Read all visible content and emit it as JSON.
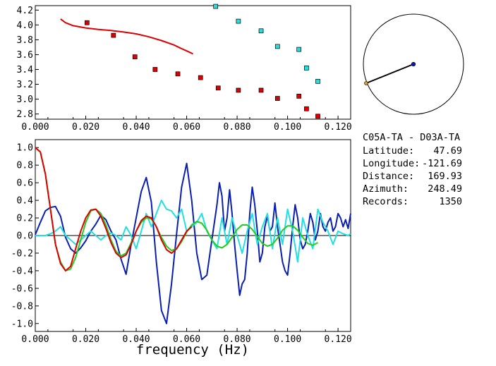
{
  "station_pair": "C05A-TA - D03A-TA",
  "info": [
    {
      "label": "Latitude:",
      "value": "47.69"
    },
    {
      "label": "Longitude:",
      "value": "-121.69"
    },
    {
      "label": "Distance:",
      "value": "169.93"
    },
    {
      "label": "Azimuth:",
      "value": "248.49"
    },
    {
      "label": "Records:",
      "value": "1350"
    }
  ],
  "colors": {
    "red": "#dd0000",
    "cyan": "#22e0e0",
    "blue": "#0a1fb0",
    "green": "#22cc22",
    "black": "#000000"
  },
  "chart_data": [
    {
      "type": "scatter",
      "title": "",
      "xlabel": "",
      "ylabel": "",
      "xlim": [
        0.0,
        0.125
      ],
      "ylim": [
        2.73,
        4.26
      ],
      "xticks": [
        "0.000",
        "0.020",
        "0.040",
        "0.060",
        "0.080",
        "0.100",
        "0.120"
      ],
      "yticks": [
        "2.8",
        "3.0",
        "3.2",
        "3.4",
        "3.6",
        "3.8",
        "4.0",
        "4.2"
      ],
      "series": [
        {
          "kind": "line",
          "color": "red",
          "x": [
            0.01,
            0.012,
            0.015,
            0.02,
            0.025,
            0.03,
            0.035,
            0.04,
            0.045,
            0.05,
            0.055,
            0.058,
            0.06,
            0.0625
          ],
          "y": [
            4.08,
            4.03,
            3.99,
            3.96,
            3.94,
            3.925,
            3.905,
            3.88,
            3.84,
            3.79,
            3.73,
            3.68,
            3.65,
            3.61
          ]
        },
        {
          "kind": "points",
          "color": "red",
          "x": [
            0.0205,
            0.031,
            0.0395,
            0.0475,
            0.0565,
            0.0655,
            0.0725,
            0.0805,
            0.0895,
            0.096,
            0.1045,
            0.1075,
            0.112
          ],
          "y": [
            4.03,
            3.86,
            3.57,
            3.4,
            3.34,
            3.29,
            3.15,
            3.12,
            3.12,
            3.01,
            3.04,
            2.87,
            2.77
          ]
        },
        {
          "kind": "points",
          "color": "cyan",
          "x": [
            0.0715,
            0.0805,
            0.0895,
            0.096,
            0.1045,
            0.1075,
            0.112
          ],
          "y": [
            4.25,
            4.05,
            3.92,
            3.71,
            3.67,
            3.42,
            3.24
          ]
        }
      ]
    },
    {
      "type": "line",
      "title": "",
      "xlabel": "frequency (Hz)",
      "ylabel": "",
      "xlim": [
        0.0,
        0.125
      ],
      "ylim": [
        -1.09,
        1.09
      ],
      "xticks": [
        "0.000",
        "0.020",
        "0.040",
        "0.060",
        "0.080",
        "0.100",
        "0.120"
      ],
      "yticks": [
        "1.0",
        "0.8",
        "0.6",
        "0.4",
        "0.2",
        "0.0",
        "-0.2",
        "-0.4",
        "-0.6",
        "-0.8",
        "-1.0"
      ],
      "zero_line": true,
      "series": [
        {
          "color": "blue",
          "x": [
            0.0,
            0.002,
            0.004,
            0.006,
            0.008,
            0.01,
            0.012,
            0.014,
            0.016,
            0.018,
            0.02,
            0.022,
            0.024,
            0.026,
            0.028,
            0.03,
            0.032,
            0.034,
            0.036,
            0.038,
            0.04,
            0.042,
            0.044,
            0.046,
            0.048,
            0.05,
            0.052,
            0.054,
            0.056,
            0.058,
            0.06,
            0.062,
            0.064,
            0.066,
            0.068,
            0.07,
            0.072,
            0.073,
            0.074,
            0.075,
            0.076,
            0.077,
            0.078,
            0.079,
            0.08,
            0.081,
            0.082,
            0.083,
            0.084,
            0.085,
            0.086,
            0.087,
            0.088,
            0.089,
            0.09,
            0.091,
            0.092,
            0.093,
            0.094,
            0.095,
            0.096,
            0.097,
            0.098,
            0.099,
            0.1,
            0.101,
            0.102,
            0.103,
            0.104,
            0.105,
            0.106,
            0.107,
            0.108,
            0.109,
            0.11,
            0.111,
            0.112,
            0.113,
            0.114,
            0.115,
            0.116,
            0.117,
            0.118,
            0.119,
            0.12,
            0.121,
            0.122,
            0.123,
            0.124,
            0.125
          ],
          "y": [
            0.01,
            0.15,
            0.28,
            0.32,
            0.33,
            0.22,
            -0.02,
            -0.15,
            -0.2,
            -0.14,
            -0.06,
            0.05,
            0.13,
            0.23,
            0.18,
            0.05,
            -0.05,
            -0.27,
            -0.44,
            -0.1,
            0.2,
            0.5,
            0.66,
            0.38,
            -0.3,
            -0.85,
            -1.0,
            -0.55,
            0.02,
            0.55,
            0.82,
            0.4,
            -0.2,
            -0.5,
            -0.45,
            -0.05,
            0.35,
            0.6,
            0.45,
            0.05,
            0.2,
            0.52,
            0.25,
            -0.1,
            -0.4,
            -0.68,
            -0.55,
            -0.5,
            -0.2,
            0.25,
            0.55,
            0.35,
            0.05,
            -0.3,
            -0.2,
            0.1,
            0.22,
            0.05,
            0.1,
            0.37,
            0.1,
            -0.1,
            -0.3,
            -0.4,
            -0.45,
            -0.2,
            0.1,
            0.35,
            0.2,
            -0.05,
            -0.15,
            -0.1,
            0.05,
            0.25,
            0.15,
            -0.05,
            0.05,
            0.25,
            0.1,
            0.05,
            0.15,
            0.2,
            0.05,
            0.1,
            0.25,
            0.2,
            0.1,
            0.18,
            0.08,
            0.25
          ]
        },
        {
          "color": "cyan",
          "x": [
            0.0,
            0.002,
            0.004,
            0.006,
            0.008,
            0.01,
            0.012,
            0.014,
            0.016,
            0.018,
            0.02,
            0.022,
            0.024,
            0.026,
            0.028,
            0.03,
            0.032,
            0.034,
            0.036,
            0.038,
            0.04,
            0.042,
            0.044,
            0.046,
            0.048,
            0.05,
            0.052,
            0.054,
            0.056,
            0.058,
            0.06,
            0.062,
            0.064,
            0.066,
            0.068,
            0.07,
            0.072,
            0.074,
            0.076,
            0.078,
            0.08,
            0.082,
            0.084,
            0.086,
            0.088,
            0.09,
            0.092,
            0.094,
            0.096,
            0.098,
            0.1,
            0.102,
            0.104,
            0.106,
            0.108,
            0.11,
            0.112,
            0.114,
            0.116,
            0.118,
            0.12,
            0.122,
            0.124,
            0.125
          ],
          "y": [
            0.0,
            0.0,
            0.0,
            0.02,
            0.05,
            0.1,
            0.0,
            -0.05,
            -0.1,
            -0.05,
            0.0,
            0.05,
            0.0,
            -0.05,
            0.0,
            0.03,
            0.0,
            -0.05,
            0.1,
            0.0,
            -0.15,
            0.05,
            0.25,
            0.1,
            0.25,
            0.4,
            0.3,
            0.28,
            0.2,
            0.3,
            0.05,
            0.1,
            0.15,
            0.25,
            0.05,
            -0.05,
            -0.15,
            0.2,
            -0.1,
            0.2,
            0.0,
            -0.2,
            0.05,
            0.25,
            -0.1,
            0.1,
            0.25,
            -0.15,
            0.2,
            -0.1,
            0.3,
            0.05,
            -0.3,
            0.2,
            0.0,
            -0.15,
            0.3,
            0.15,
            0.05,
            -0.1,
            0.05,
            0.02,
            0.0,
            0.02
          ]
        },
        {
          "color": "green",
          "x": [
            0.0,
            0.002,
            0.004,
            0.006,
            0.008,
            0.01,
            0.012,
            0.014,
            0.016,
            0.018,
            0.02,
            0.022,
            0.024,
            0.026,
            0.028,
            0.03,
            0.032,
            0.034,
            0.036,
            0.038,
            0.04,
            0.042,
            0.044,
            0.046,
            0.048,
            0.05,
            0.052,
            0.054,
            0.056,
            0.058,
            0.06,
            0.062,
            0.064,
            0.066,
            0.068,
            0.07,
            0.072,
            0.074,
            0.076,
            0.078,
            0.08,
            0.082,
            0.084,
            0.086,
            0.088,
            0.09,
            0.092,
            0.094,
            0.096,
            0.098,
            0.1,
            0.102,
            0.104,
            0.106,
            0.108,
            0.11,
            0.112
          ],
          "y": [
            1.0,
            0.95,
            0.7,
            0.3,
            -0.1,
            -0.3,
            -0.4,
            -0.38,
            -0.25,
            -0.05,
            0.15,
            0.28,
            0.3,
            0.25,
            0.12,
            -0.05,
            -0.18,
            -0.23,
            -0.2,
            -0.08,
            0.05,
            0.15,
            0.2,
            0.19,
            0.1,
            -0.02,
            -0.12,
            -0.17,
            -0.15,
            -0.07,
            0.04,
            0.12,
            0.16,
            0.14,
            0.06,
            -0.05,
            -0.12,
            -0.14,
            -0.1,
            -0.02,
            0.07,
            0.12,
            0.12,
            0.07,
            -0.01,
            -0.09,
            -0.12,
            -0.1,
            -0.03,
            0.06,
            0.11,
            0.11,
            0.06,
            -0.02,
            -0.09,
            -0.11,
            -0.08
          ]
        },
        {
          "color": "red",
          "x": [
            0.0,
            0.002,
            0.004,
            0.006,
            0.008,
            0.01,
            0.012,
            0.014,
            0.016,
            0.018,
            0.02,
            0.022,
            0.024,
            0.026,
            0.028,
            0.03,
            0.032,
            0.034,
            0.036,
            0.038,
            0.04,
            0.042,
            0.044,
            0.046,
            0.048,
            0.05,
            0.052,
            0.054,
            0.056,
            0.058,
            0.06,
            0.062
          ],
          "y": [
            1.0,
            0.95,
            0.7,
            0.3,
            -0.1,
            -0.32,
            -0.4,
            -0.35,
            -0.15,
            0.05,
            0.2,
            0.29,
            0.3,
            0.22,
            0.08,
            -0.08,
            -0.2,
            -0.25,
            -0.22,
            -0.1,
            0.05,
            0.17,
            0.22,
            0.2,
            0.1,
            -0.05,
            -0.16,
            -0.2,
            -0.15,
            -0.05,
            0.05,
            0.1
          ]
        }
      ]
    }
  ],
  "map": {
    "marker_start_color": "#d9a020",
    "marker_end_color": "#0a1fb0",
    "azimuth_deg": 248.49
  }
}
